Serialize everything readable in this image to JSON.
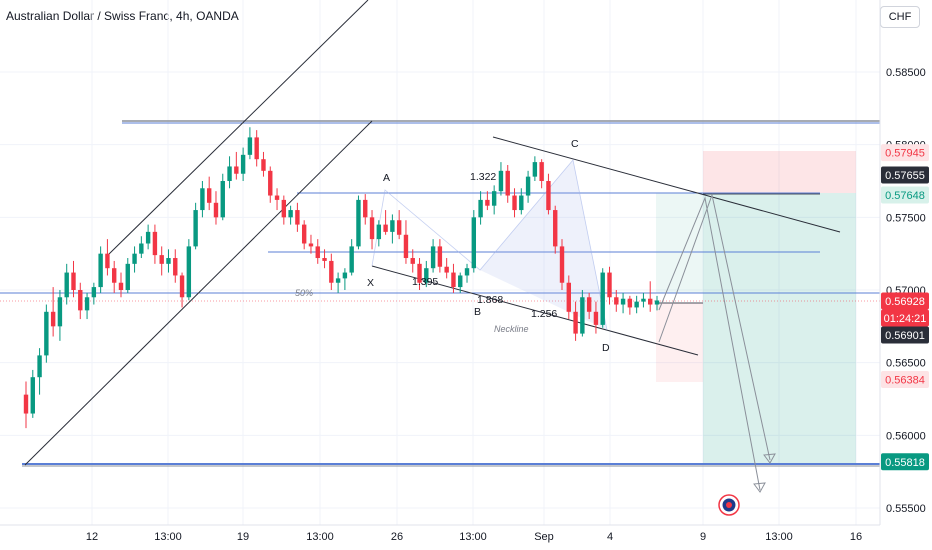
{
  "header": {
    "title": "Australian Dollar / Swiss Franc, 4h, OANDA",
    "currency_button": "CHF"
  },
  "chart_data": {
    "type": "candlestick",
    "y_ticks": [
      "0.58500",
      "0.58000",
      "0.57500",
      "0.57000",
      "0.56500",
      "0.56000",
      "0.55500"
    ],
    "y_tick_values": [
      0.585,
      0.58,
      0.575,
      0.57,
      0.565,
      0.56,
      0.555
    ],
    "x_ticks": [
      "12",
      "13:00",
      "19",
      "13:00",
      "26",
      "13:00",
      "Sep",
      "4",
      "9",
      "13:00",
      "16"
    ],
    "price_tags": [
      {
        "label": "0.57945",
        "value": 0.57945,
        "style": "red-light"
      },
      {
        "label": "0.57655",
        "value": 0.57655,
        "style": "dark"
      },
      {
        "label": "0.57648",
        "value": 0.57648,
        "style": "green-light"
      },
      {
        "label": "0.56928",
        "value": 0.56928,
        "style": "red-solid"
      },
      {
        "label": "01:24:21",
        "value": 0.5685,
        "style": "red-solid"
      },
      {
        "label": "0.56901",
        "value": 0.56901,
        "style": "dark"
      },
      {
        "label": "0.56384",
        "value": 0.56384,
        "style": "red-light"
      },
      {
        "label": "0.55818",
        "value": 0.55818,
        "style": "green-solid"
      }
    ],
    "annotations": {
      "points": [
        "X",
        "A",
        "B",
        "C",
        "D"
      ],
      "ratios": [
        "1.395",
        "1.322",
        "1.868",
        "1.256"
      ],
      "neckline": "Neckline",
      "fib": "50%"
    },
    "candles": [
      [
        0.5628,
        0.5637,
        0.5605,
        0.5615
      ],
      [
        0.5615,
        0.5645,
        0.5612,
        0.564
      ],
      [
        0.564,
        0.566,
        0.5628,
        0.5655
      ],
      [
        0.5655,
        0.569,
        0.565,
        0.5685
      ],
      [
        0.5685,
        0.5702,
        0.5668,
        0.5675
      ],
      [
        0.5675,
        0.57,
        0.5665,
        0.5695
      ],
      [
        0.5695,
        0.5718,
        0.569,
        0.5712
      ],
      [
        0.5712,
        0.572,
        0.5695,
        0.57
      ],
      [
        0.57,
        0.5705,
        0.568,
        0.5686
      ],
      [
        0.5686,
        0.5698,
        0.568,
        0.5695
      ],
      [
        0.5695,
        0.5705,
        0.569,
        0.5702
      ],
      [
        0.5702,
        0.573,
        0.5698,
        0.5725
      ],
      [
        0.5725,
        0.5735,
        0.571,
        0.5715
      ],
      [
        0.5715,
        0.572,
        0.5698,
        0.5705
      ],
      [
        0.5705,
        0.5712,
        0.5695,
        0.57
      ],
      [
        0.57,
        0.5722,
        0.5698,
        0.5718
      ],
      [
        0.5718,
        0.573,
        0.5712,
        0.5725
      ],
      [
        0.5725,
        0.5737,
        0.5722,
        0.5732
      ],
      [
        0.5732,
        0.5745,
        0.5728,
        0.574
      ],
      [
        0.574,
        0.5745,
        0.5718,
        0.5724
      ],
      [
        0.5724,
        0.573,
        0.571,
        0.5718
      ],
      [
        0.5718,
        0.5728,
        0.5712,
        0.5722
      ],
      [
        0.5722,
        0.5728,
        0.5705,
        0.571
      ],
      [
        0.571,
        0.5712,
        0.5688,
        0.5695
      ],
      [
        0.5695,
        0.5735,
        0.5693,
        0.573
      ],
      [
        0.573,
        0.576,
        0.5728,
        0.5755
      ],
      [
        0.5755,
        0.5775,
        0.575,
        0.577
      ],
      [
        0.577,
        0.5778,
        0.5755,
        0.576
      ],
      [
        0.576,
        0.5768,
        0.5745,
        0.575
      ],
      [
        0.575,
        0.578,
        0.5748,
        0.5775
      ],
      [
        0.5775,
        0.5792,
        0.577,
        0.5785
      ],
      [
        0.5785,
        0.5795,
        0.5776,
        0.578
      ],
      [
        0.578,
        0.5798,
        0.5775,
        0.5793
      ],
      [
        0.5793,
        0.5812,
        0.579,
        0.5805
      ],
      [
        0.5805,
        0.581,
        0.5785,
        0.579
      ],
      [
        0.579,
        0.5795,
        0.5778,
        0.5782
      ],
      [
        0.5782,
        0.5785,
        0.576,
        0.5765
      ],
      [
        0.5765,
        0.577,
        0.5755,
        0.5762
      ],
      [
        0.5762,
        0.5765,
        0.5745,
        0.575
      ],
      [
        0.575,
        0.5758,
        0.5745,
        0.5755
      ],
      [
        0.5755,
        0.576,
        0.574,
        0.5745
      ],
      [
        0.5745,
        0.5748,
        0.5728,
        0.5732
      ],
      [
        0.5732,
        0.5738,
        0.5725,
        0.573
      ],
      [
        0.573,
        0.5735,
        0.5718,
        0.5722
      ],
      [
        0.5722,
        0.5728,
        0.5715,
        0.572
      ],
      [
        0.572,
        0.5725,
        0.57,
        0.5705
      ],
      [
        0.5705,
        0.5712,
        0.5698,
        0.5708
      ],
      [
        0.5708,
        0.5715,
        0.57,
        0.5712
      ],
      [
        0.5712,
        0.5735,
        0.571,
        0.573
      ],
      [
        0.573,
        0.5765,
        0.5728,
        0.5762
      ],
      [
        0.5762,
        0.5766,
        0.5745,
        0.575
      ],
      [
        0.575,
        0.5755,
        0.5728,
        0.5735
      ],
      [
        0.5735,
        0.5748,
        0.573,
        0.5745
      ],
      [
        0.5745,
        0.5755,
        0.5738,
        0.574
      ],
      [
        0.574,
        0.5752,
        0.5732,
        0.5748
      ],
      [
        0.5748,
        0.5755,
        0.5735,
        0.5738
      ],
      [
        0.5738,
        0.5748,
        0.5718,
        0.5722
      ],
      [
        0.5722,
        0.5728,
        0.5712,
        0.5718
      ],
      [
        0.5718,
        0.5722,
        0.57,
        0.5705
      ],
      [
        0.5705,
        0.572,
        0.5702,
        0.5715
      ],
      [
        0.5715,
        0.5735,
        0.5712,
        0.573
      ],
      [
        0.573,
        0.5735,
        0.5712,
        0.5716
      ],
      [
        0.5716,
        0.5722,
        0.5708,
        0.5712
      ],
      [
        0.5712,
        0.5718,
        0.5698,
        0.5702
      ],
      [
        0.5702,
        0.5712,
        0.5698,
        0.571
      ],
      [
        0.571,
        0.5718,
        0.5705,
        0.5715
      ],
      [
        0.5715,
        0.5755,
        0.5712,
        0.575
      ],
      [
        0.575,
        0.5768,
        0.5745,
        0.5762
      ],
      [
        0.5762,
        0.5768,
        0.5755,
        0.5758
      ],
      [
        0.5758,
        0.5772,
        0.5752,
        0.5768
      ],
      [
        0.5768,
        0.5788,
        0.5765,
        0.5782
      ],
      [
        0.5782,
        0.5786,
        0.576,
        0.5765
      ],
      [
        0.5765,
        0.577,
        0.575,
        0.5755
      ],
      [
        0.5755,
        0.577,
        0.5752,
        0.5765
      ],
      [
        0.5765,
        0.5782,
        0.576,
        0.5778
      ],
      [
        0.5778,
        0.5792,
        0.5775,
        0.5788
      ],
      [
        0.5788,
        0.579,
        0.577,
        0.5775
      ],
      [
        0.5775,
        0.578,
        0.5752,
        0.5755
      ],
      [
        0.5755,
        0.5758,
        0.5725,
        0.573
      ],
      [
        0.573,
        0.5735,
        0.57,
        0.5705
      ],
      [
        0.5705,
        0.571,
        0.568,
        0.5685
      ],
      [
        0.5685,
        0.5692,
        0.5665,
        0.567
      ],
      [
        0.567,
        0.57,
        0.5668,
        0.5695
      ],
      [
        0.5695,
        0.5698,
        0.568,
        0.5685
      ],
      [
        0.5685,
        0.5692,
        0.567,
        0.5676
      ],
      [
        0.5676,
        0.5715,
        0.5674,
        0.5712
      ],
      [
        0.5712,
        0.5716,
        0.569,
        0.5695
      ],
      [
        0.5695,
        0.57,
        0.5685,
        0.569
      ],
      [
        0.569,
        0.5698,
        0.5684,
        0.5694
      ],
      [
        0.5694,
        0.5696,
        0.5683,
        0.5688
      ],
      [
        0.5688,
        0.5696,
        0.5684,
        0.5692
      ],
      [
        0.5692,
        0.5698,
        0.5688,
        0.5694
      ],
      [
        0.5694,
        0.5706,
        0.5685,
        0.569
      ],
      [
        0.569,
        0.5696,
        0.5686,
        0.56928
      ]
    ]
  }
}
